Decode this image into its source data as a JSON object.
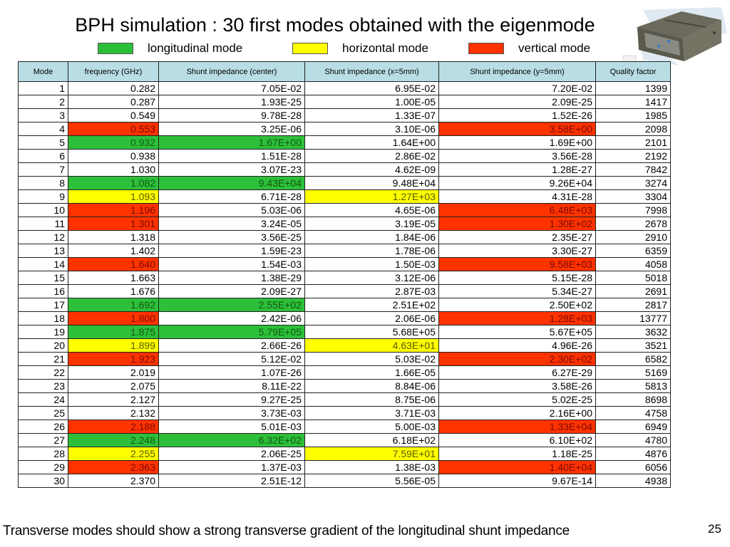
{
  "title": "BPH simulation : 30 first modes obtained with the eigenmode",
  "legend": [
    {
      "label": "longitudinal mode",
      "color": "#2ebf3a"
    },
    {
      "label": "horizontal mode",
      "color": "#ffff00"
    },
    {
      "label": "vertical mode",
      "color": "#ff3300"
    }
  ],
  "image": {
    "description": "3D model of BPH cavity (grey box)"
  },
  "table": {
    "headers": [
      "Mode",
      "frequency (GHz)",
      "Shunt impedance (center)",
      "Shunt impedance (x=5mm)",
      "Shunt impedance (y=5mm)",
      "Quality factor"
    ],
    "rows": [
      {
        "mode": "1",
        "freq": "0.282",
        "center": "7.05E-02",
        "x5": "6.95E-02",
        "y5": "7.20E-02",
        "q": "1399",
        "type": ""
      },
      {
        "mode": "2",
        "freq": "0.287",
        "center": "1.93E-25",
        "x5": "1.00E-05",
        "y5": "2.09E-25",
        "q": "1417",
        "type": ""
      },
      {
        "mode": "3",
        "freq": "0.549",
        "center": "9.78E-28",
        "x5": "1.33E-07",
        "y5": "1.52E-26",
        "q": "1985",
        "type": ""
      },
      {
        "mode": "4",
        "freq": "0.553",
        "center": "3.25E-06",
        "x5": "3.10E-06",
        "y5": "3.58E+00",
        "q": "2098",
        "type": "vertical"
      },
      {
        "mode": "5",
        "freq": "0.932",
        "center": "1.67E+00",
        "x5": "1.64E+00",
        "y5": "1.69E+00",
        "q": "2101",
        "type": "longitudinal"
      },
      {
        "mode": "6",
        "freq": "0.938",
        "center": "1.51E-28",
        "x5": "2.86E-02",
        "y5": "3.56E-28",
        "q": "2192",
        "type": ""
      },
      {
        "mode": "7",
        "freq": "1.030",
        "center": "3.07E-23",
        "x5": "4.62E-09",
        "y5": "1.28E-27",
        "q": "7842",
        "type": ""
      },
      {
        "mode": "8",
        "freq": "1.082",
        "center": "9.43E+04",
        "x5": "9.48E+04",
        "y5": "9.26E+04",
        "q": "3274",
        "type": "longitudinal"
      },
      {
        "mode": "9",
        "freq": "1.093",
        "center": "6.71E-28",
        "x5": "1.27E+03",
        "y5": "4.31E-28",
        "q": "3304",
        "type": "horizontal"
      },
      {
        "mode": "10",
        "freq": "1.196",
        "center": "5.03E-06",
        "x5": "4.65E-06",
        "y5": "6.48E+03",
        "q": "7998",
        "type": "vertical"
      },
      {
        "mode": "11",
        "freq": "1.301",
        "center": "3.24E-05",
        "x5": "3.19E-05",
        "y5": "1.30E+02",
        "q": "2678",
        "type": "vertical"
      },
      {
        "mode": "12",
        "freq": "1.318",
        "center": "3.56E-25",
        "x5": "1.84E-06",
        "y5": "2.35E-27",
        "q": "2910",
        "type": ""
      },
      {
        "mode": "13",
        "freq": "1.402",
        "center": "1.59E-23",
        "x5": "1.78E-06",
        "y5": "3.30E-27",
        "q": "6359",
        "type": ""
      },
      {
        "mode": "14",
        "freq": "1.640",
        "center": "1.54E-03",
        "x5": "1.50E-03",
        "y5": "9.58E+03",
        "q": "4058",
        "type": "vertical"
      },
      {
        "mode": "15",
        "freq": "1.663",
        "center": "1.38E-29",
        "x5": "3.12E-06",
        "y5": "5.15E-28",
        "q": "5018",
        "type": ""
      },
      {
        "mode": "16",
        "freq": "1.676",
        "center": "2.09E-27",
        "x5": "2.87E-03",
        "y5": "5.34E-27",
        "q": "2691",
        "type": ""
      },
      {
        "mode": "17",
        "freq": "1.692",
        "center": "2.55E+02",
        "x5": "2.51E+02",
        "y5": "2.50E+02",
        "q": "2817",
        "type": "longitudinal"
      },
      {
        "mode": "18",
        "freq": "1.800",
        "center": "2.42E-06",
        "x5": "2.06E-06",
        "y5": "1.28E+03",
        "q": "13777",
        "type": "vertical"
      },
      {
        "mode": "19",
        "freq": "1.875",
        "center": "5.79E+05",
        "x5": "5.68E+05",
        "y5": "5.67E+05",
        "q": "3632",
        "type": "longitudinal"
      },
      {
        "mode": "20",
        "freq": "1.899",
        "center": "2.66E-26",
        "x5": "4.63E+01",
        "y5": "4.96E-26",
        "q": "3521",
        "type": "horizontal"
      },
      {
        "mode": "21",
        "freq": "1.923",
        "center": "5.12E-02",
        "x5": "5.03E-02",
        "y5": "2.30E+02",
        "q": "6582",
        "type": "vertical"
      },
      {
        "mode": "22",
        "freq": "2.019",
        "center": "1.07E-26",
        "x5": "1.66E-05",
        "y5": "6.27E-29",
        "q": "5169",
        "type": ""
      },
      {
        "mode": "23",
        "freq": "2.075",
        "center": "8.11E-22",
        "x5": "8.84E-06",
        "y5": "3.58E-26",
        "q": "5813",
        "type": ""
      },
      {
        "mode": "24",
        "freq": "2.127",
        "center": "9.27E-25",
        "x5": "8.75E-06",
        "y5": "5.02E-25",
        "q": "8698",
        "type": ""
      },
      {
        "mode": "25",
        "freq": "2.132",
        "center": "3.73E-03",
        "x5": "3.71E-03",
        "y5": "2.16E+00",
        "q": "4758",
        "type": ""
      },
      {
        "mode": "26",
        "freq": "2.188",
        "center": "5.01E-03",
        "x5": "5.00E-03",
        "y5": "1.33E+04",
        "q": "6949",
        "type": "vertical"
      },
      {
        "mode": "27",
        "freq": "2.248",
        "center": "6.32E+02",
        "x5": "6.18E+02",
        "y5": "6.10E+02",
        "q": "4780",
        "type": "longitudinal"
      },
      {
        "mode": "28",
        "freq": "2.255",
        "center": "2.06E-25",
        "x5": "7.59E+01",
        "y5": "1.18E-25",
        "q": "4876",
        "type": "horizontal"
      },
      {
        "mode": "29",
        "freq": "2.363",
        "center": "1.37E-03",
        "x5": "1.38E-03",
        "y5": "1.40E+04",
        "q": "6056",
        "type": "vertical"
      },
      {
        "mode": "30",
        "freq": "2.370",
        "center": "2.51E-12",
        "x5": "5.56E-05",
        "y5": "9.67E-14",
        "q": "4938",
        "type": ""
      }
    ]
  },
  "footer": "Transverse modes should show a strong transverse gradient of the longitudinal shunt impedance",
  "page_number": "25"
}
